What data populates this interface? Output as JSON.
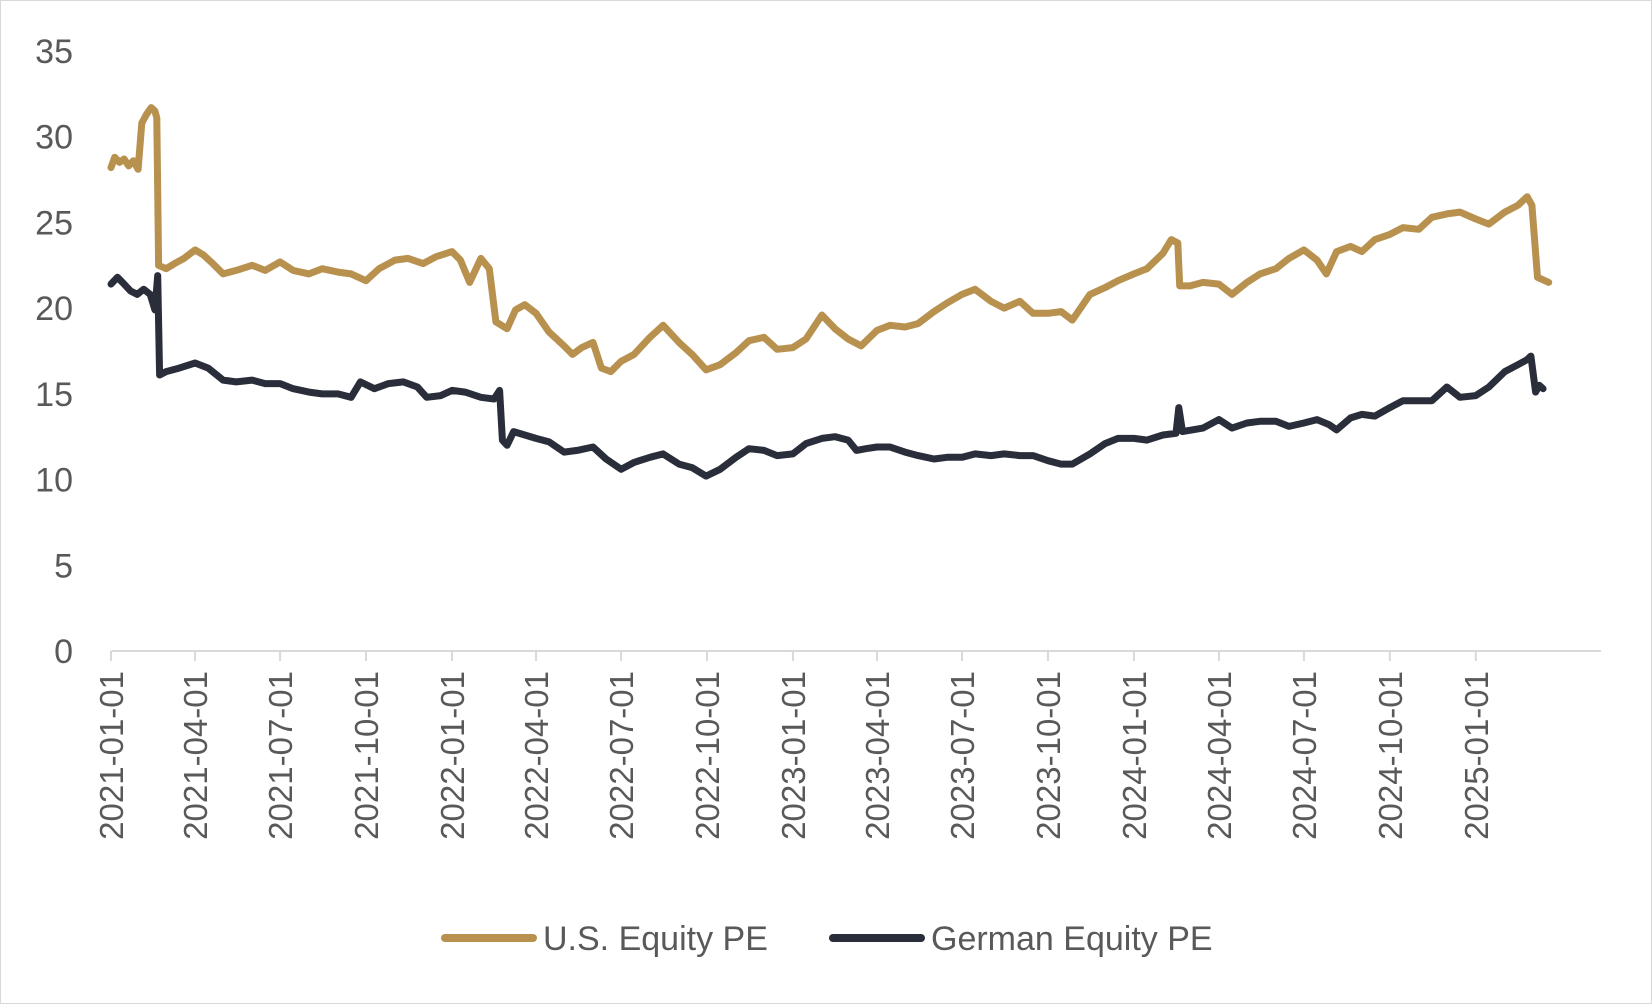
{
  "chart_data": {
    "type": "line",
    "title": "",
    "xlabel": "",
    "ylabel": "",
    "ylim": [
      0,
      35
    ],
    "yticks": [
      "0",
      "5",
      "10",
      "15",
      "20",
      "25",
      "30",
      "35"
    ],
    "xlim": [
      "2021-01-01",
      "2025-05-15"
    ],
    "xticks": [
      "2021-01-01",
      "2021-04-01",
      "2021-07-01",
      "2021-10-01",
      "2022-01-01",
      "2022-04-01",
      "2022-07-01",
      "2022-10-01",
      "2023-01-01",
      "2023-04-01",
      "2023-07-01",
      "2023-10-01",
      "2024-01-01",
      "2024-04-01",
      "2024-07-01",
      "2024-10-01",
      "2025-01-01"
    ],
    "grid": false,
    "legend_position": "bottom",
    "series": [
      {
        "name": "U.S. Equity PE",
        "color": "#B8914F",
        "points": [
          [
            "2021-01-01",
            28.2
          ],
          [
            "2021-01-05",
            28.8
          ],
          [
            "2021-01-10",
            28.5
          ],
          [
            "2021-01-15",
            28.7
          ],
          [
            "2021-01-20",
            28.3
          ],
          [
            "2021-01-25",
            28.6
          ],
          [
            "2021-01-30",
            28.1
          ],
          [
            "2021-02-03",
            30.8
          ],
          [
            "2021-02-08",
            31.3
          ],
          [
            "2021-02-13",
            31.7
          ],
          [
            "2021-02-17",
            31.5
          ],
          [
            "2021-02-19",
            31.1
          ],
          [
            "2021-02-21",
            22.5
          ],
          [
            "2021-03-01",
            22.3
          ],
          [
            "2021-03-10",
            22.6
          ],
          [
            "2021-03-20",
            22.9
          ],
          [
            "2021-04-01",
            23.4
          ],
          [
            "2021-04-10",
            23.1
          ],
          [
            "2021-04-20",
            22.6
          ],
          [
            "2021-05-01",
            22.0
          ],
          [
            "2021-05-15",
            22.2
          ],
          [
            "2021-06-01",
            22.5
          ],
          [
            "2021-06-15",
            22.2
          ],
          [
            "2021-07-01",
            22.7
          ],
          [
            "2021-07-15",
            22.2
          ],
          [
            "2021-08-01",
            22.0
          ],
          [
            "2021-08-15",
            22.3
          ],
          [
            "2021-09-01",
            22.1
          ],
          [
            "2021-09-15",
            22.0
          ],
          [
            "2021-10-01",
            21.6
          ],
          [
            "2021-10-15",
            22.3
          ],
          [
            "2021-11-01",
            22.8
          ],
          [
            "2021-11-15",
            22.9
          ],
          [
            "2021-12-01",
            22.6
          ],
          [
            "2021-12-15",
            23.0
          ],
          [
            "2022-01-01",
            23.3
          ],
          [
            "2022-01-10",
            22.8
          ],
          [
            "2022-01-20",
            21.5
          ],
          [
            "2022-02-01",
            22.9
          ],
          [
            "2022-02-10",
            22.3
          ],
          [
            "2022-02-17",
            19.2
          ],
          [
            "2022-03-01",
            18.8
          ],
          [
            "2022-03-10",
            19.9
          ],
          [
            "2022-03-20",
            20.2
          ],
          [
            "2022-04-01",
            19.7
          ],
          [
            "2022-04-15",
            18.6
          ],
          [
            "2022-05-01",
            17.8
          ],
          [
            "2022-05-10",
            17.3
          ],
          [
            "2022-05-20",
            17.7
          ],
          [
            "2022-06-01",
            18.0
          ],
          [
            "2022-06-10",
            16.5
          ],
          [
            "2022-06-20",
            16.3
          ],
          [
            "2022-07-01",
            16.9
          ],
          [
            "2022-07-15",
            17.3
          ],
          [
            "2022-08-01",
            18.3
          ],
          [
            "2022-08-15",
            19.0
          ],
          [
            "2022-09-01",
            18.0
          ],
          [
            "2022-09-15",
            17.3
          ],
          [
            "2022-09-30",
            16.4
          ],
          [
            "2022-10-15",
            16.7
          ],
          [
            "2022-11-01",
            17.4
          ],
          [
            "2022-11-15",
            18.1
          ],
          [
            "2022-12-01",
            18.3
          ],
          [
            "2022-12-15",
            17.6
          ],
          [
            "2023-01-01",
            17.7
          ],
          [
            "2023-01-15",
            18.2
          ],
          [
            "2023-02-01",
            19.6
          ],
          [
            "2023-02-15",
            18.8
          ],
          [
            "2023-03-01",
            18.2
          ],
          [
            "2023-03-15",
            17.8
          ],
          [
            "2023-04-01",
            18.7
          ],
          [
            "2023-04-15",
            19.0
          ],
          [
            "2023-05-01",
            18.9
          ],
          [
            "2023-05-15",
            19.1
          ],
          [
            "2023-06-01",
            19.8
          ],
          [
            "2023-06-15",
            20.3
          ],
          [
            "2023-07-01",
            20.8
          ],
          [
            "2023-07-15",
            21.1
          ],
          [
            "2023-08-01",
            20.4
          ],
          [
            "2023-08-15",
            20.0
          ],
          [
            "2023-09-01",
            20.4
          ],
          [
            "2023-09-15",
            19.7
          ],
          [
            "2023-10-01",
            19.7
          ],
          [
            "2023-10-15",
            19.8
          ],
          [
            "2023-10-27",
            19.3
          ],
          [
            "2023-11-15",
            20.8
          ],
          [
            "2023-12-01",
            21.2
          ],
          [
            "2023-12-15",
            21.6
          ],
          [
            "2024-01-01",
            22.0
          ],
          [
            "2024-01-15",
            22.3
          ],
          [
            "2024-02-01",
            23.2
          ],
          [
            "2024-02-10",
            24.0
          ],
          [
            "2024-02-17",
            23.8
          ],
          [
            "2024-02-19",
            21.3
          ],
          [
            "2024-03-01",
            21.3
          ],
          [
            "2024-03-15",
            21.5
          ],
          [
            "2024-04-01",
            21.4
          ],
          [
            "2024-04-15",
            20.8
          ],
          [
            "2024-05-01",
            21.5
          ],
          [
            "2024-05-15",
            22.0
          ],
          [
            "2024-06-01",
            22.3
          ],
          [
            "2024-06-15",
            22.9
          ],
          [
            "2024-07-01",
            23.4
          ],
          [
            "2024-07-15",
            22.8
          ],
          [
            "2024-07-25",
            22.0
          ],
          [
            "2024-08-05",
            23.3
          ],
          [
            "2024-08-20",
            23.6
          ],
          [
            "2024-09-01",
            23.3
          ],
          [
            "2024-09-15",
            24.0
          ],
          [
            "2024-10-01",
            24.3
          ],
          [
            "2024-10-15",
            24.7
          ],
          [
            "2024-11-01",
            24.6
          ],
          [
            "2024-11-15",
            25.3
          ],
          [
            "2024-12-01",
            25.5
          ],
          [
            "2024-12-15",
            25.6
          ],
          [
            "2025-01-01",
            25.2
          ],
          [
            "2025-01-15",
            24.9
          ],
          [
            "2025-02-01",
            25.6
          ],
          [
            "2025-02-15",
            26.0
          ],
          [
            "2025-02-25",
            26.5
          ],
          [
            "2025-03-02",
            26.0
          ],
          [
            "2025-03-08",
            21.8
          ],
          [
            "2025-03-20",
            21.5
          ]
        ]
      },
      {
        "name": "German Equity PE",
        "color": "#2A2E3A",
        "points": [
          [
            "2021-01-01",
            21.4
          ],
          [
            "2021-01-08",
            21.8
          ],
          [
            "2021-01-15",
            21.4
          ],
          [
            "2021-01-22",
            21.0
          ],
          [
            "2021-01-29",
            20.8
          ],
          [
            "2021-02-05",
            21.1
          ],
          [
            "2021-02-12",
            20.8
          ],
          [
            "2021-02-17",
            19.9
          ],
          [
            "2021-02-20",
            21.9
          ],
          [
            "2021-02-22",
            16.1
          ],
          [
            "2021-03-01",
            16.3
          ],
          [
            "2021-03-15",
            16.5
          ],
          [
            "2021-04-01",
            16.8
          ],
          [
            "2021-04-15",
            16.5
          ],
          [
            "2021-05-01",
            15.8
          ],
          [
            "2021-05-15",
            15.7
          ],
          [
            "2021-06-01",
            15.8
          ],
          [
            "2021-06-15",
            15.6
          ],
          [
            "2021-07-01",
            15.6
          ],
          [
            "2021-07-15",
            15.3
          ],
          [
            "2021-08-01",
            15.1
          ],
          [
            "2021-08-15",
            15.0
          ],
          [
            "2021-09-01",
            15.0
          ],
          [
            "2021-09-15",
            14.8
          ],
          [
            "2021-09-25",
            15.7
          ],
          [
            "2021-10-10",
            15.3
          ],
          [
            "2021-10-25",
            15.6
          ],
          [
            "2021-11-10",
            15.7
          ],
          [
            "2021-11-25",
            15.4
          ],
          [
            "2021-12-05",
            14.8
          ],
          [
            "2021-12-20",
            14.9
          ],
          [
            "2022-01-01",
            15.2
          ],
          [
            "2022-01-15",
            15.1
          ],
          [
            "2022-02-01",
            14.8
          ],
          [
            "2022-02-15",
            14.7
          ],
          [
            "2022-02-21",
            15.2
          ],
          [
            "2022-02-24",
            12.3
          ],
          [
            "2022-03-01",
            12.0
          ],
          [
            "2022-03-08",
            12.8
          ],
          [
            "2022-03-20",
            12.6
          ],
          [
            "2022-04-01",
            12.4
          ],
          [
            "2022-04-15",
            12.2
          ],
          [
            "2022-05-01",
            11.6
          ],
          [
            "2022-05-15",
            11.7
          ],
          [
            "2022-06-01",
            11.9
          ],
          [
            "2022-06-15",
            11.2
          ],
          [
            "2022-07-01",
            10.6
          ],
          [
            "2022-07-15",
            11.0
          ],
          [
            "2022-08-01",
            11.3
          ],
          [
            "2022-08-15",
            11.5
          ],
          [
            "2022-09-01",
            10.9
          ],
          [
            "2022-09-15",
            10.7
          ],
          [
            "2022-09-30",
            10.2
          ],
          [
            "2022-10-15",
            10.6
          ],
          [
            "2022-11-01",
            11.3
          ],
          [
            "2022-11-15",
            11.8
          ],
          [
            "2022-12-01",
            11.7
          ],
          [
            "2022-12-15",
            11.4
          ],
          [
            "2023-01-01",
            11.5
          ],
          [
            "2023-01-15",
            12.1
          ],
          [
            "2023-02-01",
            12.4
          ],
          [
            "2023-02-15",
            12.5
          ],
          [
            "2023-03-01",
            12.3
          ],
          [
            "2023-03-10",
            11.7
          ],
          [
            "2023-03-20",
            11.8
          ],
          [
            "2023-04-01",
            11.9
          ],
          [
            "2023-04-15",
            11.9
          ],
          [
            "2023-05-01",
            11.6
          ],
          [
            "2023-05-15",
            11.4
          ],
          [
            "2023-06-01",
            11.2
          ],
          [
            "2023-06-15",
            11.3
          ],
          [
            "2023-07-01",
            11.3
          ],
          [
            "2023-07-15",
            11.5
          ],
          [
            "2023-08-01",
            11.4
          ],
          [
            "2023-08-15",
            11.5
          ],
          [
            "2023-09-01",
            11.4
          ],
          [
            "2023-09-15",
            11.4
          ],
          [
            "2023-10-01",
            11.1
          ],
          [
            "2023-10-15",
            10.9
          ],
          [
            "2023-10-27",
            10.9
          ],
          [
            "2023-11-15",
            11.5
          ],
          [
            "2023-12-01",
            12.1
          ],
          [
            "2023-12-15",
            12.4
          ],
          [
            "2024-01-01",
            12.4
          ],
          [
            "2024-01-15",
            12.3
          ],
          [
            "2024-02-01",
            12.6
          ],
          [
            "2024-02-15",
            12.7
          ],
          [
            "2024-02-18",
            14.2
          ],
          [
            "2024-02-22",
            12.8
          ],
          [
            "2024-03-15",
            13.0
          ],
          [
            "2024-04-01",
            13.5
          ],
          [
            "2024-04-15",
            13.0
          ],
          [
            "2024-05-01",
            13.3
          ],
          [
            "2024-05-15",
            13.4
          ],
          [
            "2024-06-01",
            13.4
          ],
          [
            "2024-06-15",
            13.1
          ],
          [
            "2024-07-01",
            13.3
          ],
          [
            "2024-07-15",
            13.5
          ],
          [
            "2024-07-28",
            13.2
          ],
          [
            "2024-08-05",
            12.9
          ],
          [
            "2024-08-20",
            13.6
          ],
          [
            "2024-09-01",
            13.8
          ],
          [
            "2024-09-15",
            13.7
          ],
          [
            "2024-10-01",
            14.2
          ],
          [
            "2024-10-15",
            14.6
          ],
          [
            "2024-11-01",
            14.6
          ],
          [
            "2024-11-15",
            14.6
          ],
          [
            "2024-12-01",
            15.4
          ],
          [
            "2024-12-15",
            14.8
          ],
          [
            "2025-01-01",
            14.9
          ],
          [
            "2025-01-15",
            15.4
          ],
          [
            "2025-02-01",
            16.3
          ],
          [
            "2025-02-15",
            16.7
          ],
          [
            "2025-02-25",
            17.0
          ],
          [
            "2025-03-01",
            17.2
          ],
          [
            "2025-03-06",
            15.1
          ],
          [
            "2025-03-10",
            15.5
          ],
          [
            "2025-03-14",
            15.3
          ]
        ]
      }
    ]
  }
}
